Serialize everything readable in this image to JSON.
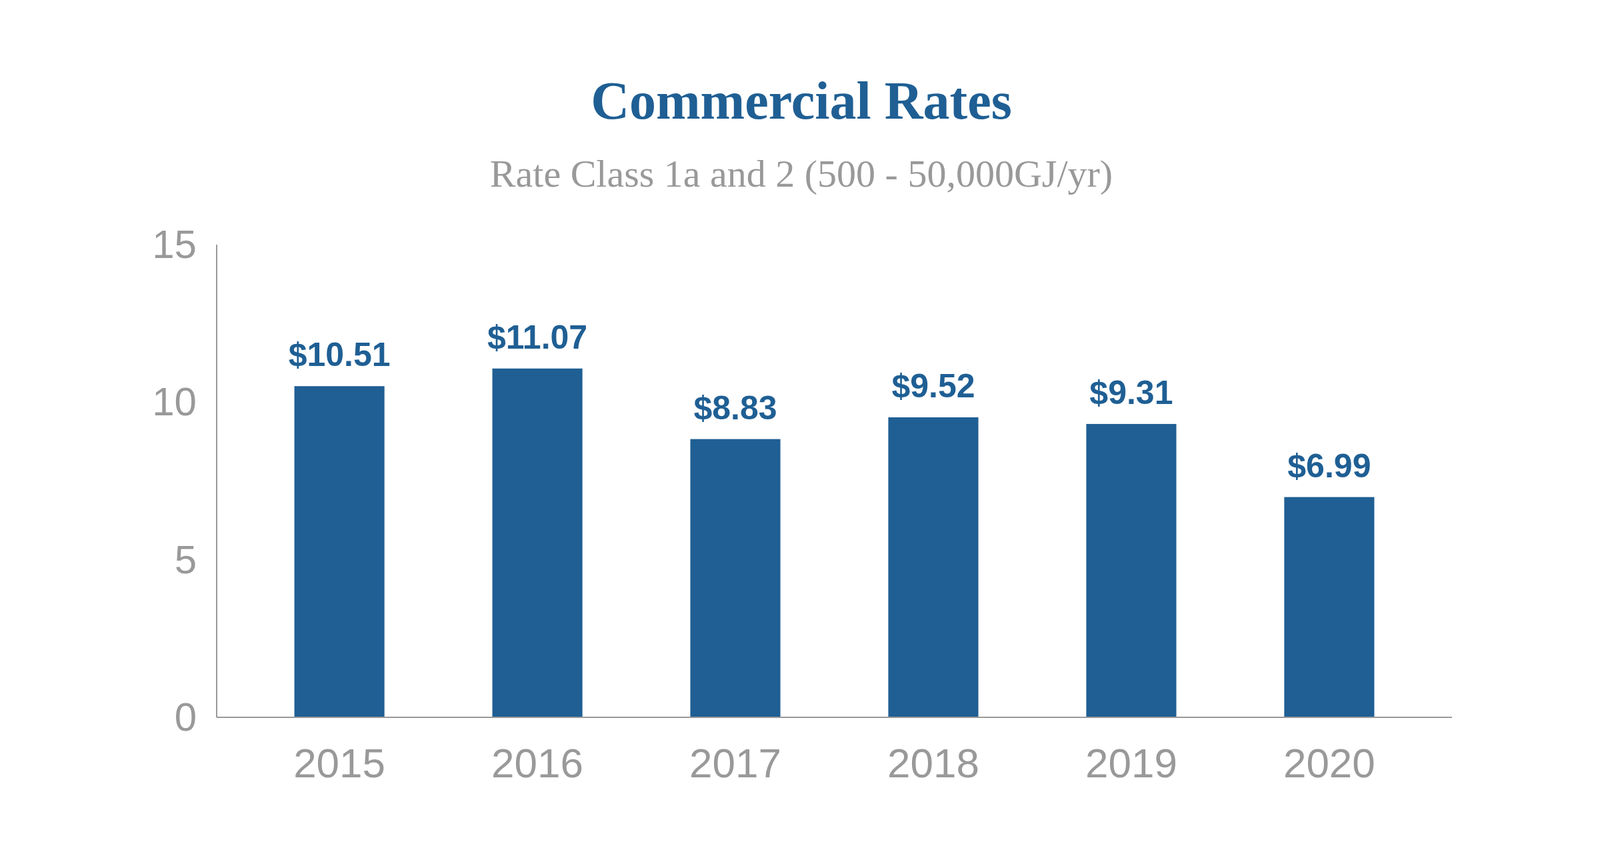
{
  "chart_data": {
    "type": "bar",
    "title": "Commercial Rates",
    "subtitle": "Rate Class 1a and 2 (500 - 50,000GJ/yr)",
    "categories": [
      "2015",
      "2016",
      "2017",
      "2018",
      "2019",
      "2020"
    ],
    "values": [
      10.51,
      11.07,
      8.83,
      9.52,
      9.31,
      6.99
    ],
    "value_labels": [
      "$10.51",
      "$11.07",
      "$8.83",
      "$9.52",
      "$9.31",
      "$6.99"
    ],
    "color": "#1f5f94",
    "ylim": [
      0,
      15
    ],
    "yticks": [
      0,
      5,
      10,
      15
    ],
    "grid": false,
    "data_labels": true
  }
}
